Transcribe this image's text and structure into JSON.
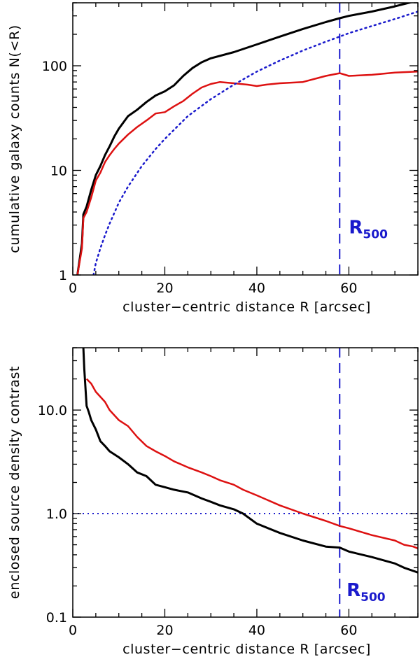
{
  "chart_data": [
    {
      "type": "line",
      "yscale": "log",
      "xlabel": "cluster−centric distance R [arcsec]",
      "ylabel": "cumulative galaxy counts N(<R)",
      "xlim": [
        0,
        75
      ],
      "ylim": [
        1,
        400
      ],
      "xticks": [
        0,
        20,
        40,
        60
      ],
      "xtick_labels": [
        "0",
        "20",
        "40",
        "60"
      ],
      "yticks": [
        1,
        10,
        100
      ],
      "ytick_labels": [
        "1",
        "10",
        "100"
      ],
      "vline": {
        "x": 58,
        "style": "dashed",
        "color": "#1a1acc"
      },
      "annotation": {
        "text": "R",
        "sub": "500",
        "x": 60,
        "y": 2.5
      },
      "series": [
        {
          "name": "black",
          "color": "#000000",
          "width": 3,
          "dash": "",
          "x": [
            1,
            2,
            2.3,
            3,
            4,
            5,
            6,
            7,
            8,
            9,
            10,
            12,
            14,
            16,
            18,
            20,
            22,
            24,
            26,
            28,
            30,
            35,
            40,
            45,
            50,
            55,
            58,
            60,
            65,
            70,
            75
          ],
          "y": [
            1,
            2,
            3.8,
            4.5,
            6.5,
            9,
            11,
            14,
            17,
            21,
            25,
            33,
            38,
            45,
            52,
            57,
            65,
            80,
            95,
            108,
            118,
            135,
            160,
            190,
            225,
            262,
            285,
            300,
            330,
            370,
            420
          ]
        },
        {
          "name": "red",
          "color": "#dd1111",
          "width": 2.5,
          "dash": "",
          "x": [
            1,
            2,
            2.3,
            3,
            4,
            5,
            6,
            7,
            8,
            9,
            10,
            12,
            14,
            16,
            18,
            20,
            22,
            24,
            26,
            28,
            30,
            32,
            35,
            38,
            40,
            42,
            45,
            50,
            55,
            58,
            60,
            65,
            70,
            75
          ],
          "y": [
            1,
            1.8,
            3.5,
            4,
            5.5,
            8,
            9.5,
            12,
            14,
            16,
            18,
            22,
            26,
            30,
            35,
            36,
            41,
            46,
            54,
            62,
            67,
            70,
            68,
            66,
            64,
            66,
            68,
            70,
            80,
            85,
            80,
            82,
            86,
            88
          ]
        },
        {
          "name": "blue-dotted",
          "color": "#1a1acc",
          "width": 2.5,
          "dash": "2 5",
          "x": [
            4.5,
            5,
            6,
            7,
            8,
            10,
            12,
            15,
            18,
            20,
            25,
            30,
            35,
            40,
            45,
            50,
            55,
            58,
            60,
            65,
            70,
            75
          ],
          "y": [
            1,
            1.3,
            1.8,
            2.4,
            3.1,
            4.9,
            7,
            11,
            16,
            20,
            33,
            48,
            66,
            88,
            112,
            140,
            170,
            190,
            205,
            240,
            280,
            330
          ]
        }
      ]
    },
    {
      "type": "line",
      "yscale": "log",
      "xlabel": "cluster−centric distance R [arcsec]",
      "ylabel": "enclosed source density contrast",
      "xlim": [
        0,
        75
      ],
      "ylim": [
        0.1,
        40
      ],
      "xticks": [
        0,
        20,
        40,
        60
      ],
      "xtick_labels": [
        "0",
        "20",
        "40",
        "60"
      ],
      "yticks": [
        0.1,
        1,
        10
      ],
      "ytick_labels": [
        "0.1",
        "1.0",
        "10.0"
      ],
      "vline": {
        "x": 58,
        "style": "dashed",
        "color": "#1a1acc"
      },
      "hline": {
        "y": 1.0,
        "style": "dotted",
        "color": "#1a1acc"
      },
      "annotation": {
        "text": "R",
        "sub": "500",
        "x": 59.5,
        "y": 0.16
      },
      "series": [
        {
          "name": "black",
          "color": "#000000",
          "width": 3,
          "dash": "",
          "x": [
            2.3,
            2.5,
            3,
            3.5,
            4,
            5,
            6,
            7,
            8,
            10,
            12,
            14,
            16,
            18,
            20,
            22,
            25,
            28,
            30,
            32,
            35,
            37,
            40,
            45,
            50,
            55,
            58,
            60,
            65,
            70,
            72,
            75
          ],
          "y": [
            40,
            25,
            11,
            9.5,
            8,
            6.5,
            5,
            4.5,
            4,
            3.5,
            3,
            2.5,
            2.3,
            1.9,
            1.8,
            1.7,
            1.6,
            1.4,
            1.3,
            1.2,
            1.1,
            1.0,
            0.8,
            0.65,
            0.55,
            0.48,
            0.47,
            0.43,
            0.38,
            0.33,
            0.3,
            0.27
          ]
        },
        {
          "name": "red",
          "color": "#dd1111",
          "width": 2.5,
          "dash": "",
          "x": [
            3,
            4,
            5,
            7,
            8,
            10,
            12,
            14,
            16,
            18,
            20,
            22,
            25,
            28,
            30,
            32,
            35,
            37,
            40,
            45,
            50,
            55,
            58,
            60,
            65,
            70,
            72,
            74,
            75
          ],
          "y": [
            20,
            18,
            15,
            12,
            10,
            8,
            7,
            5.5,
            4.5,
            4,
            3.6,
            3.2,
            2.8,
            2.5,
            2.3,
            2.1,
            1.9,
            1.7,
            1.5,
            1.2,
            1.0,
            0.85,
            0.76,
            0.72,
            0.62,
            0.55,
            0.5,
            0.48,
            0.46
          ]
        }
      ]
    }
  ]
}
